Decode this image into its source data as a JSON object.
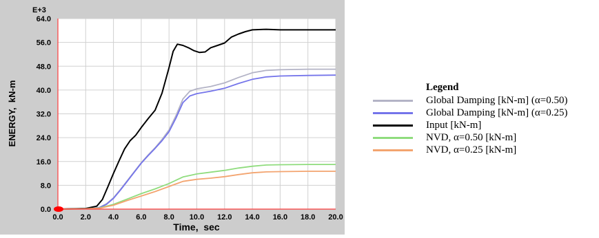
{
  "chart_data": {
    "type": "line",
    "title": "",
    "xlabel": "Time,  sec",
    "ylabel": "ENERGY,  kN-m",
    "y_exponent_label": "E+3",
    "xlim": [
      0,
      20
    ],
    "ylim": [
      0,
      64
    ],
    "x_ticks": [
      "0.0",
      "2.0",
      "4.0",
      "6.0",
      "8.0",
      "10.0",
      "12.0",
      "14.0",
      "16.0",
      "18.0",
      "20.0"
    ],
    "y_ticks": [
      "0.0",
      "8.0",
      "16.0",
      "24.0",
      "32.0",
      "40.0",
      "48.0",
      "56.0",
      "64.0"
    ],
    "grid": true,
    "legend_title": "Legend",
    "legend_position": "right",
    "series": [
      {
        "name": "Global Damping [kN-m] (α=0.50)",
        "color": "#b3b3c6",
        "points": [
          [
            0,
            0
          ],
          [
            2,
            0.1
          ],
          [
            3,
            0.6
          ],
          [
            3.5,
            1.8
          ],
          [
            4,
            3.8
          ],
          [
            4.5,
            6.6
          ],
          [
            5,
            9.6
          ],
          [
            5.5,
            12.6
          ],
          [
            6,
            15.6
          ],
          [
            6.5,
            18.2
          ],
          [
            7,
            20.6
          ],
          [
            7.5,
            23.4
          ],
          [
            8,
            26.6
          ],
          [
            8.5,
            31.4
          ],
          [
            9,
            37.0
          ],
          [
            9.5,
            39.6
          ],
          [
            10,
            40.4
          ],
          [
            11,
            41.2
          ],
          [
            12,
            42.4
          ],
          [
            13,
            44.2
          ],
          [
            14,
            45.8
          ],
          [
            15,
            46.6
          ],
          [
            16,
            46.8
          ],
          [
            18,
            47.0
          ],
          [
            20,
            47.0
          ]
        ]
      },
      {
        "name": "Global Damping [kN-m] (α=0.25)",
        "color": "#7474ea",
        "points": [
          [
            0,
            0
          ],
          [
            2,
            0.1
          ],
          [
            3,
            0.5
          ],
          [
            3.5,
            1.6
          ],
          [
            4,
            3.6
          ],
          [
            4.5,
            6.4
          ],
          [
            5,
            9.4
          ],
          [
            5.5,
            12.4
          ],
          [
            6,
            15.4
          ],
          [
            6.5,
            18.0
          ],
          [
            7,
            20.4
          ],
          [
            7.5,
            23.0
          ],
          [
            8,
            26.0
          ],
          [
            8.5,
            30.6
          ],
          [
            9,
            35.8
          ],
          [
            9.5,
            38.0
          ],
          [
            10,
            38.8
          ],
          [
            11,
            39.6
          ],
          [
            12,
            40.6
          ],
          [
            13,
            42.2
          ],
          [
            14,
            43.6
          ],
          [
            15,
            44.4
          ],
          [
            16,
            44.7
          ],
          [
            18,
            44.9
          ],
          [
            20,
            45.0
          ]
        ]
      },
      {
        "name": "Input [kN-m]",
        "color": "#000000",
        "points": [
          [
            0,
            0
          ],
          [
            2,
            0.2
          ],
          [
            2.8,
            1.0
          ],
          [
            3.2,
            3.2
          ],
          [
            3.6,
            7.5
          ],
          [
            4,
            12.0
          ],
          [
            4.4,
            16.2
          ],
          [
            4.8,
            20.2
          ],
          [
            5.2,
            23.0
          ],
          [
            5.6,
            24.8
          ],
          [
            6,
            27.4
          ],
          [
            6.5,
            30.4
          ],
          [
            7,
            33.2
          ],
          [
            7.5,
            39.0
          ],
          [
            8,
            47.5
          ],
          [
            8.3,
            53.0
          ],
          [
            8.6,
            55.4
          ],
          [
            9,
            55.0
          ],
          [
            9.4,
            54.2
          ],
          [
            9.8,
            53.2
          ],
          [
            10.2,
            52.6
          ],
          [
            10.6,
            52.8
          ],
          [
            11,
            54.2
          ],
          [
            11.5,
            55.0
          ],
          [
            12,
            55.8
          ],
          [
            12.5,
            57.8
          ],
          [
            13,
            58.8
          ],
          [
            13.5,
            59.6
          ],
          [
            14,
            60.2
          ],
          [
            15,
            60.4
          ],
          [
            16,
            60.2
          ],
          [
            18,
            60.2
          ],
          [
            20,
            60.2
          ]
        ]
      },
      {
        "name": "NVD, α=0.50 [kN-m]",
        "color": "#8fdc7d",
        "points": [
          [
            0,
            0
          ],
          [
            2,
            0.1
          ],
          [
            3,
            0.4
          ],
          [
            4,
            1.6
          ],
          [
            5,
            3.4
          ],
          [
            6,
            5.2
          ],
          [
            7,
            6.8
          ],
          [
            8,
            8.6
          ],
          [
            9,
            10.8
          ],
          [
            10,
            11.8
          ],
          [
            11,
            12.4
          ],
          [
            12,
            13.0
          ],
          [
            13,
            13.8
          ],
          [
            14,
            14.4
          ],
          [
            15,
            14.8
          ],
          [
            16,
            14.9
          ],
          [
            18,
            15.0
          ],
          [
            20,
            15.0
          ]
        ]
      },
      {
        "name": "NVD, α=0.25 [kN-m]",
        "color": "#f3a46f",
        "points": [
          [
            0,
            0
          ],
          [
            2,
            0.1
          ],
          [
            3,
            0.3
          ],
          [
            4,
            1.3
          ],
          [
            5,
            2.9
          ],
          [
            6,
            4.4
          ],
          [
            7,
            5.9
          ],
          [
            8,
            7.6
          ],
          [
            9,
            9.3
          ],
          [
            10,
            10.0
          ],
          [
            11,
            10.4
          ],
          [
            12,
            10.9
          ],
          [
            13,
            11.6
          ],
          [
            14,
            12.2
          ],
          [
            15,
            12.5
          ],
          [
            16,
            12.6
          ],
          [
            18,
            12.7
          ],
          [
            20,
            12.7
          ]
        ]
      }
    ]
  }
}
